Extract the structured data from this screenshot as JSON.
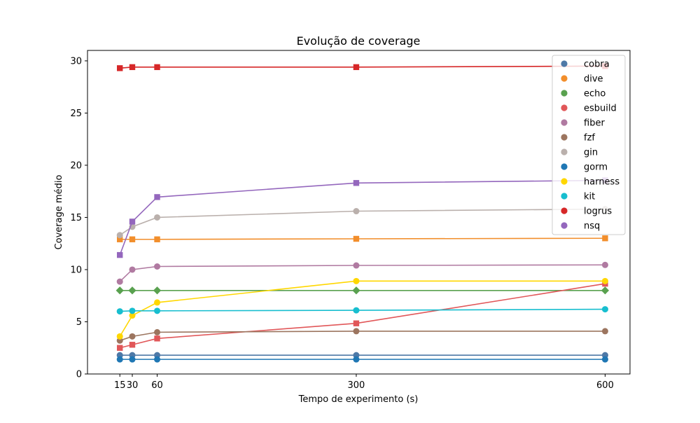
{
  "chart_data": {
    "type": "line",
    "title": "Evolução de coverage",
    "xlabel": "Tempo de experimento (s)",
    "ylabel": "Coverage médio",
    "x": [
      15,
      30,
      60,
      300,
      600
    ],
    "xticks": [
      "15",
      "30",
      "60",
      "300",
      "600"
    ],
    "yticks": [
      "0",
      "5",
      "10",
      "15",
      "20",
      "25",
      "30"
    ],
    "xlim": [
      -24,
      630
    ],
    "ylim": [
      0,
      31
    ],
    "grid": false,
    "legend_position": "top-right",
    "series": [
      {
        "name": "cobra",
        "color": "#4e79a7",
        "marker": "circle",
        "values": [
          1.8,
          1.8,
          1.8,
          1.8,
          1.8
        ]
      },
      {
        "name": "dive",
        "color": "#f28e2b",
        "marker": "square",
        "values": [
          12.9,
          12.9,
          12.9,
          12.95,
          13.0
        ]
      },
      {
        "name": "echo",
        "color": "#59a14f",
        "marker": "diamond",
        "values": [
          8.0,
          8.0,
          8.0,
          8.0,
          8.0
        ]
      },
      {
        "name": "esbuild",
        "color": "#e15759",
        "marker": "square",
        "values": [
          2.5,
          2.8,
          3.4,
          4.85,
          8.65
        ]
      },
      {
        "name": "fiber",
        "color": "#b07aa1",
        "marker": "circle",
        "values": [
          8.85,
          10.0,
          10.3,
          10.4,
          10.45
        ]
      },
      {
        "name": "fzf",
        "color": "#9c755f",
        "marker": "circle",
        "values": [
          3.2,
          3.6,
          4.0,
          4.1,
          4.1
        ]
      },
      {
        "name": "gin",
        "color": "#bab0ac",
        "marker": "circle",
        "values": [
          13.3,
          14.1,
          15.0,
          15.6,
          15.8
        ]
      },
      {
        "name": "gorm",
        "color": "#1f77b4",
        "marker": "circle",
        "values": [
          1.4,
          1.4,
          1.4,
          1.4,
          1.4
        ]
      },
      {
        "name": "harness",
        "color": "#ffd700",
        "marker": "circle",
        "values": [
          3.6,
          5.6,
          6.85,
          8.9,
          8.9
        ]
      },
      {
        "name": "kit",
        "color": "#17becf",
        "marker": "circle",
        "values": [
          6.0,
          6.05,
          6.05,
          6.1,
          6.2
        ]
      },
      {
        "name": "logrus",
        "color": "#d62728",
        "marker": "square",
        "values": [
          29.3,
          29.4,
          29.4,
          29.4,
          29.5
        ]
      },
      {
        "name": "nsq",
        "color": "#9467bd",
        "marker": "square",
        "values": [
          11.4,
          14.6,
          16.95,
          18.3,
          18.55
        ]
      }
    ]
  }
}
